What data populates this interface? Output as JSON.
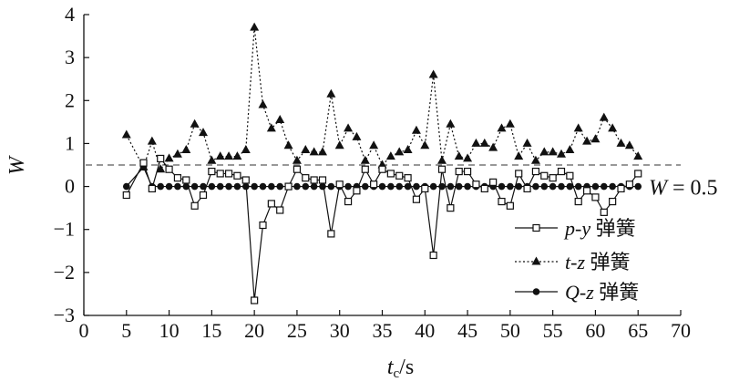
{
  "chart_data": {
    "type": "line",
    "xlabel": {
      "main": "t",
      "sub": "c",
      "unit": "/s"
    },
    "ylabel": "W",
    "xlim": [
      0,
      70
    ],
    "ylim": [
      -3,
      4
    ],
    "xticks": [
      "0",
      "5",
      "10",
      "15",
      "20",
      "25",
      "30",
      "35",
      "40",
      "45",
      "50",
      "55",
      "60",
      "65",
      "70"
    ],
    "yticks": [
      "−3",
      "−2",
      "−1",
      "0",
      "1",
      "2",
      "3",
      "4"
    ],
    "grid": false,
    "legend_position": "lower-right",
    "reference_line": {
      "y": 0.5,
      "style": "dashed",
      "label": "W = 0.5",
      "label_var": "W",
      "label_rest": " = 0.5"
    },
    "series": [
      {
        "name": "p-y 弹簧",
        "name_italic": "p-y",
        "name_rest": " 弹簧",
        "marker": "open-square",
        "line": "solid",
        "points": [
          [
            5,
            -0.2
          ],
          [
            7,
            0.55
          ],
          [
            8,
            -0.05
          ],
          [
            9,
            0.65
          ],
          [
            10,
            0.4
          ],
          [
            11,
            0.2
          ],
          [
            12,
            0.15
          ],
          [
            13,
            -0.45
          ],
          [
            14,
            -0.2
          ],
          [
            15,
            0.35
          ],
          [
            16,
            0.3
          ],
          [
            17,
            0.3
          ],
          [
            18,
            0.25
          ],
          [
            19,
            0.15
          ],
          [
            20,
            -2.65
          ],
          [
            21,
            -0.9
          ],
          [
            22,
            -0.4
          ],
          [
            23,
            -0.55
          ],
          [
            24,
            0.0
          ],
          [
            25,
            0.4
          ],
          [
            26,
            0.2
          ],
          [
            27,
            0.15
          ],
          [
            28,
            0.15
          ],
          [
            29,
            -1.1
          ],
          [
            30,
            0.05
          ],
          [
            31,
            -0.35
          ],
          [
            32,
            -0.1
          ],
          [
            33,
            0.4
          ],
          [
            34,
            0.05
          ],
          [
            35,
            0.4
          ],
          [
            36,
            0.3
          ],
          [
            37,
            0.25
          ],
          [
            38,
            0.2
          ],
          [
            39,
            -0.3
          ],
          [
            40,
            -0.05
          ],
          [
            41,
            -1.6
          ],
          [
            42,
            0.4
          ],
          [
            43,
            -0.5
          ],
          [
            44,
            0.35
          ],
          [
            45,
            0.35
          ],
          [
            46,
            0.05
          ],
          [
            47,
            -0.05
          ],
          [
            48,
            0.1
          ],
          [
            49,
            -0.35
          ],
          [
            50,
            -0.45
          ],
          [
            51,
            0.3
          ],
          [
            52,
            -0.05
          ],
          [
            53,
            0.35
          ],
          [
            54,
            0.25
          ],
          [
            55,
            0.2
          ],
          [
            56,
            0.35
          ],
          [
            57,
            0.25
          ],
          [
            58,
            -0.35
          ],
          [
            59,
            -0.1
          ],
          [
            60,
            -0.25
          ],
          [
            61,
            -0.6
          ],
          [
            62,
            -0.35
          ],
          [
            63,
            -0.05
          ],
          [
            64,
            0.05
          ],
          [
            65,
            0.3
          ]
        ]
      },
      {
        "name": "t-z 弹簧",
        "name_italic": "t-z",
        "name_rest": " 弹簧",
        "marker": "filled-triangle",
        "line": "dotted",
        "points": [
          [
            5,
            1.2
          ],
          [
            7,
            0.45
          ],
          [
            8,
            1.05
          ],
          [
            9,
            0.4
          ],
          [
            10,
            0.65
          ],
          [
            11,
            0.75
          ],
          [
            12,
            0.85
          ],
          [
            13,
            1.45
          ],
          [
            14,
            1.25
          ],
          [
            15,
            0.6
          ],
          [
            16,
            0.7
          ],
          [
            17,
            0.7
          ],
          [
            18,
            0.7
          ],
          [
            19,
            0.85
          ],
          [
            20,
            3.7
          ],
          [
            21,
            1.9
          ],
          [
            22,
            1.35
          ],
          [
            23,
            1.55
          ],
          [
            24,
            0.95
          ],
          [
            25,
            0.6
          ],
          [
            26,
            0.85
          ],
          [
            27,
            0.8
          ],
          [
            28,
            0.8
          ],
          [
            29,
            2.15
          ],
          [
            30,
            0.95
          ],
          [
            31,
            1.35
          ],
          [
            32,
            1.15
          ],
          [
            33,
            0.6
          ],
          [
            34,
            0.95
          ],
          [
            35,
            0.5
          ],
          [
            36,
            0.7
          ],
          [
            37,
            0.8
          ],
          [
            38,
            0.85
          ],
          [
            39,
            1.3
          ],
          [
            40,
            0.95
          ],
          [
            41,
            2.6
          ],
          [
            42,
            0.6
          ],
          [
            43,
            1.45
          ],
          [
            44,
            0.7
          ],
          [
            45,
            0.65
          ],
          [
            46,
            1.0
          ],
          [
            47,
            1.0
          ],
          [
            48,
            0.9
          ],
          [
            49,
            1.35
          ],
          [
            50,
            1.45
          ],
          [
            51,
            0.7
          ],
          [
            52,
            1.0
          ],
          [
            53,
            0.6
          ],
          [
            54,
            0.8
          ],
          [
            55,
            0.8
          ],
          [
            56,
            0.75
          ],
          [
            57,
            0.85
          ],
          [
            58,
            1.35
          ],
          [
            59,
            1.05
          ],
          [
            60,
            1.1
          ],
          [
            61,
            1.6
          ],
          [
            62,
            1.35
          ],
          [
            63,
            1.0
          ],
          [
            64,
            0.95
          ],
          [
            65,
            0.7
          ]
        ]
      },
      {
        "name": "Q-z 弹簧",
        "name_italic": "Q-z",
        "name_rest": " 弹簧",
        "marker": "filled-circle",
        "line": "solid",
        "points": [
          [
            5,
            0
          ],
          [
            7,
            0.45
          ],
          [
            8,
            0
          ],
          [
            9,
            0
          ],
          [
            10,
            0
          ],
          [
            11,
            0
          ],
          [
            12,
            0
          ],
          [
            13,
            0
          ],
          [
            14,
            0
          ],
          [
            15,
            0
          ],
          [
            16,
            0
          ],
          [
            17,
            0
          ],
          [
            18,
            0
          ],
          [
            19,
            0
          ],
          [
            20,
            0
          ],
          [
            21,
            0
          ],
          [
            22,
            0
          ],
          [
            23,
            0
          ],
          [
            24,
            0
          ],
          [
            25,
            0
          ],
          [
            26,
            0
          ],
          [
            27,
            0
          ],
          [
            28,
            0
          ],
          [
            29,
            0
          ],
          [
            30,
            0
          ],
          [
            31,
            0
          ],
          [
            32,
            0
          ],
          [
            33,
            0
          ],
          [
            34,
            0
          ],
          [
            35,
            0
          ],
          [
            36,
            0
          ],
          [
            37,
            0
          ],
          [
            38,
            0
          ],
          [
            39,
            0
          ],
          [
            40,
            0
          ],
          [
            41,
            0
          ],
          [
            42,
            0
          ],
          [
            43,
            0
          ],
          [
            44,
            0
          ],
          [
            45,
            0
          ],
          [
            46,
            0
          ],
          [
            47,
            0
          ],
          [
            48,
            0
          ],
          [
            49,
            0
          ],
          [
            50,
            0
          ],
          [
            51,
            0
          ],
          [
            52,
            0
          ],
          [
            53,
            0
          ],
          [
            54,
            0
          ],
          [
            55,
            0
          ],
          [
            56,
            0
          ],
          [
            57,
            0
          ],
          [
            58,
            0
          ],
          [
            59,
            0
          ],
          [
            60,
            0
          ],
          [
            61,
            0
          ],
          [
            62,
            0
          ],
          [
            63,
            0
          ],
          [
            64,
            0
          ],
          [
            65,
            0
          ]
        ]
      }
    ]
  }
}
